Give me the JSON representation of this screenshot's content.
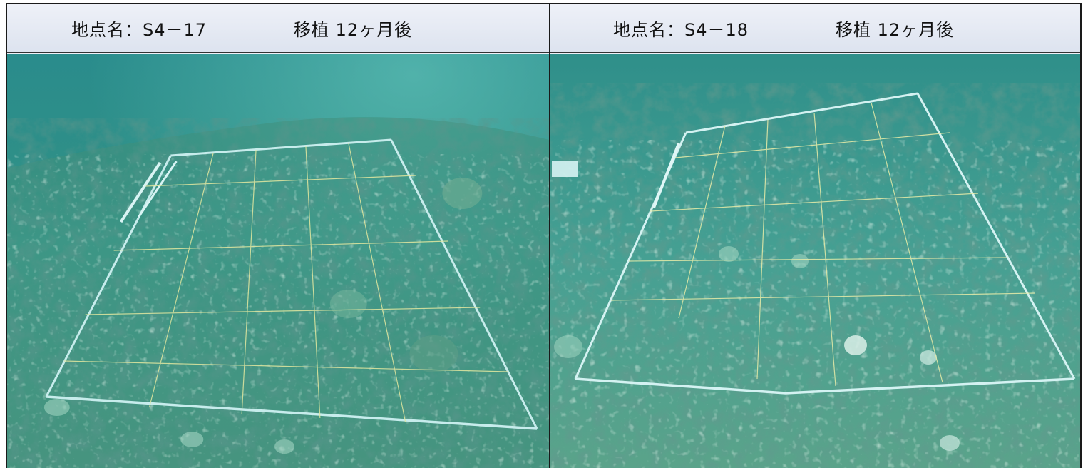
{
  "panels": [
    {
      "site_label": "地点名：S4－17",
      "elapsed_label": "移植 12ヶ月後",
      "photo": {
        "subject": "underwater reef with quadrat grid",
        "colors": {
          "water_top": "#2a8c8c",
          "water_mid": "#3a9d92",
          "seabed": "#4f9a83",
          "rope": "#c7ecec",
          "grid_line": "#e3e8a0"
        }
      }
    },
    {
      "site_label": "地点名：S4－18",
      "elapsed_label": "移植 12ヶ月後",
      "photo": {
        "subject": "underwater reef with quadrat grid",
        "colors": {
          "water_top": "#2f8f8a",
          "water_mid": "#46a093",
          "seabed": "#5aa38a",
          "rope": "#d4f2f2",
          "grid_line": "#e8eca8"
        }
      }
    }
  ]
}
